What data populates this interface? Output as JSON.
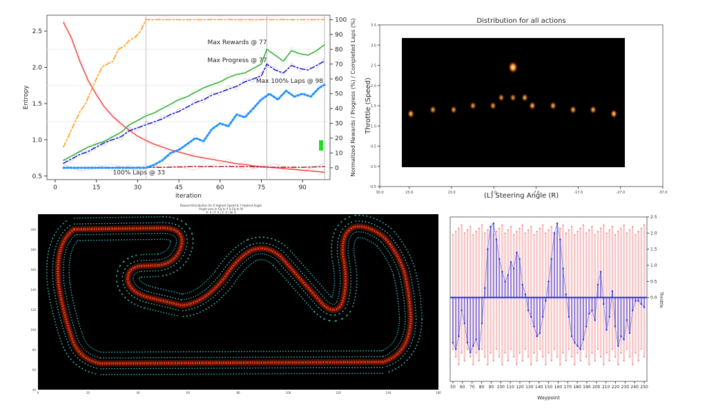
{
  "chart_data": [
    {
      "type": "line",
      "xlabel": "iteration",
      "ylabel": "Entropy",
      "y2label": "Normalized Rewards / Progress (%) / Completed Laps (%)",
      "xlim": [
        -3,
        100
      ],
      "ylim": [
        0.45,
        2.72
      ],
      "y2lim": [
        -8,
        103
      ],
      "xticks": [
        "0",
        "15",
        "30",
        "45",
        "60",
        "75",
        "90"
      ],
      "yticks": [
        "0.5",
        "1.0",
        "1.5",
        "2.0",
        "2.5"
      ],
      "y2ticks": [
        "0",
        "10",
        "20",
        "30",
        "40",
        "50",
        "60",
        "70",
        "80",
        "90",
        "100"
      ],
      "vlines": [
        33,
        77,
        98
      ],
      "annotations": [
        {
          "text": "Max Rewards @ 77",
          "x": 77,
          "y": 82
        },
        {
          "text": "Max Progress @ 77",
          "x": 77,
          "y": 70
        },
        {
          "text": "Max 100% Laps @ 98",
          "x": 98,
          "y": 56
        },
        {
          "text": "100% Laps @ 33",
          "x": 33,
          "y": -6
        }
      ],
      "series": [
        {
          "axis": "left",
          "color": "#f05050",
          "style": "solid",
          "x": [
            3,
            6,
            9,
            12,
            15,
            18,
            21,
            24,
            27,
            30,
            33,
            36,
            39,
            42,
            45,
            48,
            51,
            54,
            57,
            60,
            63,
            66,
            69,
            72,
            75,
            78,
            81,
            84,
            87,
            90,
            93,
            96,
            98
          ],
          "values": [
            2.62,
            2.4,
            2.08,
            1.82,
            1.62,
            1.45,
            1.32,
            1.22,
            1.13,
            1.05,
            0.99,
            0.94,
            0.9,
            0.86,
            0.83,
            0.8,
            0.77,
            0.75,
            0.73,
            0.71,
            0.69,
            0.67,
            0.66,
            0.64,
            0.63,
            0.62,
            0.61,
            0.6,
            0.59,
            0.58,
            0.57,
            0.56,
            0.55
          ]
        },
        {
          "axis": "left",
          "color": "#b22222",
          "style": "dashdot",
          "x": [
            3,
            10,
            20,
            30,
            40,
            50,
            60,
            70,
            80,
            90,
            98
          ],
          "values": [
            0.61,
            0.61,
            0.62,
            0.62,
            0.62,
            0.63,
            0.63,
            0.63,
            0.62,
            0.62,
            0.63
          ]
        },
        {
          "axis": "right",
          "color": "#ff9f1c",
          "style": "dashdot",
          "x": [
            3,
            5,
            7,
            9,
            11,
            13,
            15,
            17,
            19,
            21,
            23,
            25,
            27,
            29,
            31,
            33,
            40,
            50,
            60,
            70,
            80,
            90,
            98
          ],
          "values": [
            14,
            22,
            30,
            38,
            43,
            52,
            60,
            68,
            70,
            72,
            80,
            82,
            86,
            88,
            92,
            100,
            100,
            100,
            100,
            100,
            100,
            100,
            100
          ]
        },
        {
          "axis": "right",
          "color": "#3cae3c",
          "style": "solid",
          "x": [
            3,
            6,
            9,
            12,
            15,
            18,
            21,
            24,
            27,
            30,
            33,
            36,
            39,
            42,
            45,
            48,
            51,
            54,
            57,
            60,
            63,
            66,
            69,
            72,
            75,
            77,
            80,
            83,
            86,
            89,
            92,
            95,
            98
          ],
          "values": [
            5,
            8,
            11,
            14,
            16,
            18,
            21,
            24,
            29,
            32,
            35,
            37,
            40,
            43,
            46,
            48,
            51,
            54,
            56,
            58,
            61,
            63,
            64,
            67,
            70,
            80,
            76,
            72,
            79,
            77,
            76,
            79,
            83
          ]
        },
        {
          "axis": "right",
          "color": "#1f1fd0",
          "style": "dashdot",
          "x": [
            3,
            6,
            9,
            12,
            15,
            18,
            21,
            24,
            27,
            30,
            33,
            36,
            39,
            42,
            45,
            48,
            51,
            54,
            57,
            60,
            63,
            66,
            69,
            72,
            75,
            77,
            80,
            83,
            86,
            89,
            92,
            95,
            98
          ],
          "values": [
            3,
            6,
            9,
            11,
            14,
            17,
            19,
            21,
            25,
            27,
            29,
            31,
            33,
            36,
            38,
            41,
            44,
            46,
            49,
            51,
            53,
            55,
            58,
            60,
            62,
            70,
            66,
            64,
            69,
            67,
            66,
            69,
            72
          ]
        },
        {
          "axis": "right",
          "color": "#1e90ff",
          "style": "dotted",
          "x": [
            3,
            9,
            15,
            21,
            27,
            30,
            33,
            36,
            39,
            42,
            45,
            48,
            51,
            54,
            57,
            60,
            63,
            66,
            69,
            72,
            75,
            78,
            81,
            84,
            87,
            90,
            93,
            96,
            98
          ],
          "values": [
            0,
            0,
            0,
            0,
            0,
            0,
            0,
            2,
            5,
            10,
            12,
            16,
            20,
            18,
            26,
            30,
            28,
            36,
            34,
            40,
            46,
            50,
            46,
            52,
            48,
            50,
            48,
            54,
            56
          ]
        }
      ],
      "legend_marker_color": "#22dd22"
    },
    {
      "type": "heatmap",
      "title": "Distribution for all actions",
      "xlabel": "(L)    Steering Angle    (R)",
      "ylabel": "Throttle (Speed)",
      "xticks": [
        "30.0",
        "23.0",
        "13.0",
        "3.0",
        "-7.0",
        "-17.0",
        "-27.0",
        "-37.0"
      ],
      "yticks": [
        "3.5",
        "3.0",
        "2.5",
        "2.0",
        "1.5",
        "1.0",
        "0.5",
        "0.0",
        "-0.5"
      ],
      "points": [
        {
          "steer": 25,
          "speed": 1.3,
          "intensity": 0.7
        },
        {
          "steer": 20,
          "speed": 1.4,
          "intensity": 0.55
        },
        {
          "steer": 15,
          "speed": 1.4,
          "intensity": 0.5
        },
        {
          "steer": 10,
          "speed": 1.5,
          "intensity": 0.5
        },
        {
          "steer": 5,
          "speed": 1.5,
          "intensity": 0.5
        },
        {
          "steer": 3,
          "speed": 1.7,
          "intensity": 0.45
        },
        {
          "steer": 0,
          "speed": 1.7,
          "intensity": 0.45
        },
        {
          "steer": 0,
          "speed": 2.45,
          "intensity": 1.0
        },
        {
          "steer": -3,
          "speed": 1.7,
          "intensity": 0.6
        },
        {
          "steer": -5,
          "speed": 1.5,
          "intensity": 0.65
        },
        {
          "steer": -10,
          "speed": 1.5,
          "intensity": 0.6
        },
        {
          "steer": -15,
          "speed": 1.4,
          "intensity": 0.6
        },
        {
          "steer": -20,
          "speed": 1.4,
          "intensity": 0.6
        },
        {
          "steer": -25,
          "speed": 1.3,
          "intensity": 0.75
        }
      ]
    },
    {
      "type": "scatter",
      "title_lines": [
        "Reward Distribution for X Highest Speed & Y Highest Angle",
        "Angle Less or Eq to X & Eq to W",
        "X: 0 | Y: 0 | Z: 0 | W: 0"
      ],
      "background": "#000000",
      "xticks": [
        "0",
        "20",
        "40",
        "60",
        "80",
        "100",
        "120",
        "140",
        "160"
      ],
      "yticks": [
        "200",
        "180",
        "160",
        "140",
        "120",
        "100",
        "80",
        "60",
        "40"
      ],
      "border_color": "#40d0d0",
      "path_color": "#e03010"
    },
    {
      "type": "bar",
      "xlabel": "Waypoint",
      "y2label": "Throttle",
      "xticks": [
        "50",
        "60",
        "70",
        "80",
        "90",
        "100",
        "110",
        "120",
        "130",
        "140",
        "150",
        "160",
        "170",
        "180",
        "190",
        "200",
        "210",
        "220",
        "230",
        "240",
        "250"
      ],
      "y2ticks": [
        "2.5",
        "2.0",
        "1.5",
        "1.0",
        "0.5",
        "0.0"
      ],
      "waypoint_range": [
        48,
        258
      ],
      "steering_values": [
        -1.4,
        -1.6,
        -1.2,
        -0.4,
        -0.8,
        -1.4,
        -1.7,
        -1.5,
        -1.3,
        -1.6,
        -0.8,
        0.3,
        1.5,
        2.2,
        2.3,
        1.8,
        1.2,
        0.8,
        0.5,
        0.7,
        1.1,
        0.9,
        1.4,
        1.2,
        0.4,
        0.1,
        -0.4,
        -0.6,
        -0.9,
        -1.2,
        -1.1,
        -0.6,
        -0.1,
        0.5,
        1.2,
        2.0,
        2.3,
        1.8,
        0.9,
        0.1,
        -0.6,
        -1.2,
        -1.4,
        -1.5,
        -1.6,
        -1.3,
        -0.9,
        -0.5,
        -0.4,
        -0.7,
        0.4,
        0.8,
        -0.2,
        -1.0,
        -0.6,
        0.2,
        -0.9,
        -1.5,
        -1.2,
        -1.3,
        -0.7,
        -1.1,
        -0.4,
        -0.1,
        -0.1,
        -0.2,
        -0.3
      ],
      "throttle_upper": 2.1,
      "throttle_lower": -1.6,
      "steer_color": "#3b3bdc",
      "throttle_color": "#f5b5b5"
    }
  ]
}
